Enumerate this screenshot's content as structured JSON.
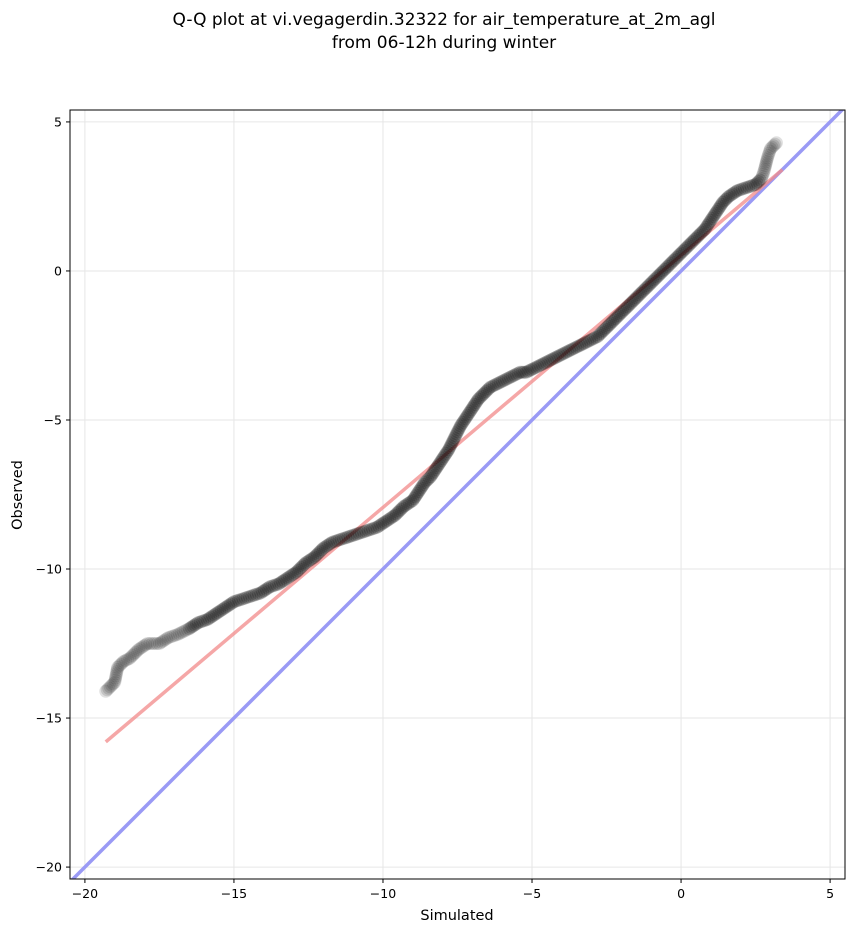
{
  "chart_data": {
    "type": "scatter",
    "title_line1": "Q-Q plot at vi.vegagerdin.32322 for air_temperature_at_2m_agl",
    "title_line2": "from 06-12h during winter",
    "xlabel": "Simulated",
    "ylabel": "Observed",
    "xlim": [
      -20.5,
      5.5
    ],
    "ylim": [
      -20.4,
      5.4
    ],
    "xticks": [
      -20,
      -15,
      -10,
      -5,
      0,
      5
    ],
    "yticks": [
      -20,
      -15,
      -10,
      -5,
      0,
      5
    ],
    "xtick_labels": [
      "−20",
      "−15",
      "−10",
      "−5",
      "0",
      "5"
    ],
    "ytick_labels": [
      "−20",
      "−15",
      "−10",
      "−5",
      "0",
      "5"
    ],
    "grid": true,
    "colors": {
      "points": "#000000",
      "fit_line": "#f28a8a",
      "identity_line": "#9a9af5",
      "grid": "#e6e6e6"
    },
    "fit_line": {
      "x": [
        -19.3,
        3.4
      ],
      "y": [
        -15.8,
        3.4
      ]
    },
    "identity_line": {
      "x": [
        -20.5,
        5.5
      ],
      "y": [
        -20.5,
        5.5
      ]
    },
    "quantiles": {
      "x": [
        -19.3,
        -19.0,
        -18.9,
        -18.7,
        -18.5,
        -18.2,
        -17.9,
        -17.5,
        -17.2,
        -16.9,
        -16.5,
        -16.2,
        -15.9,
        -15.6,
        -15.3,
        -15.0,
        -14.7,
        -14.4,
        -14.1,
        -13.8,
        -13.5,
        -13.2,
        -12.9,
        -12.6,
        -12.3,
        -12.0,
        -11.7,
        -11.4,
        -11.1,
        -10.8,
        -10.5,
        -10.2,
        -9.9,
        -9.6,
        -9.3,
        -9.0,
        -8.8,
        -8.6,
        -8.4,
        -8.2,
        -8.0,
        -7.8,
        -7.6,
        -7.4,
        -7.2,
        -7.0,
        -6.8,
        -6.6,
        -6.4,
        -6.2,
        -6.0,
        -5.8,
        -5.6,
        -5.4,
        -5.2,
        -5.0,
        -4.8,
        -4.6,
        -4.4,
        -4.2,
        -4.0,
        -3.8,
        -3.6,
        -3.4,
        -3.2,
        -3.0,
        -2.8,
        -2.6,
        -2.4,
        -2.2,
        -2.0,
        -1.8,
        -1.6,
        -1.4,
        -1.2,
        -1.0,
        -0.8,
        -0.6,
        -0.4,
        -0.2,
        0.0,
        0.2,
        0.4,
        0.6,
        0.8,
        1.0,
        1.2,
        1.4,
        1.6,
        1.9,
        2.2,
        2.5,
        2.7,
        2.8,
        2.9,
        3.0,
        3.2
      ],
      "y": [
        -14.1,
        -13.8,
        -13.3,
        -13.1,
        -13.0,
        -12.7,
        -12.5,
        -12.5,
        -12.3,
        -12.2,
        -12.0,
        -11.8,
        -11.7,
        -11.5,
        -11.3,
        -11.1,
        -11.0,
        -10.9,
        -10.8,
        -10.6,
        -10.5,
        -10.3,
        -10.1,
        -9.8,
        -9.6,
        -9.3,
        -9.1,
        -9.0,
        -8.9,
        -8.8,
        -8.7,
        -8.6,
        -8.4,
        -8.2,
        -7.9,
        -7.7,
        -7.4,
        -7.1,
        -6.9,
        -6.6,
        -6.3,
        -6.0,
        -5.6,
        -5.2,
        -4.9,
        -4.6,
        -4.3,
        -4.1,
        -3.9,
        -3.8,
        -3.7,
        -3.6,
        -3.5,
        -3.4,
        -3.4,
        -3.3,
        -3.2,
        -3.1,
        -3.0,
        -2.9,
        -2.8,
        -2.7,
        -2.6,
        -2.5,
        -2.4,
        -2.3,
        -2.2,
        -2.0,
        -1.8,
        -1.6,
        -1.4,
        -1.2,
        -1.0,
        -0.8,
        -0.6,
        -0.4,
        -0.2,
        0.0,
        0.2,
        0.4,
        0.6,
        0.8,
        1.0,
        1.2,
        1.4,
        1.7,
        2.0,
        2.3,
        2.5,
        2.7,
        2.8,
        2.9,
        3.1,
        3.4,
        3.8,
        4.1,
        4.3
      ]
    }
  }
}
